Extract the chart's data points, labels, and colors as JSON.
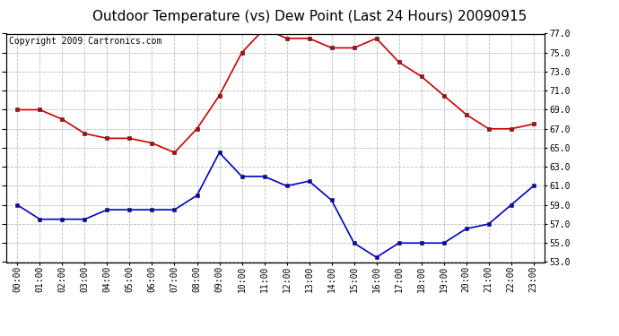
{
  "title": "Outdoor Temperature (vs) Dew Point (Last 24 Hours) 20090915",
  "copyright": "Copyright 2009 Cartronics.com",
  "hours": [
    "00:00",
    "01:00",
    "02:00",
    "03:00",
    "04:00",
    "05:00",
    "06:00",
    "07:00",
    "08:00",
    "09:00",
    "10:00",
    "11:00",
    "12:00",
    "13:00",
    "14:00",
    "15:00",
    "16:00",
    "17:00",
    "18:00",
    "19:00",
    "20:00",
    "21:00",
    "22:00",
    "23:00"
  ],
  "temp": [
    69.0,
    69.0,
    68.0,
    66.5,
    66.0,
    66.0,
    65.5,
    64.5,
    67.0,
    70.5,
    75.0,
    77.5,
    76.5,
    76.5,
    75.5,
    75.5,
    76.5,
    74.0,
    72.5,
    70.5,
    68.5,
    67.0,
    67.0,
    67.5
  ],
  "dewpoint": [
    59.0,
    57.5,
    57.5,
    57.5,
    58.5,
    58.5,
    58.5,
    58.5,
    60.0,
    64.5,
    62.0,
    62.0,
    61.0,
    61.5,
    59.5,
    55.0,
    53.5,
    55.0,
    55.0,
    55.0,
    56.5,
    57.0,
    59.0,
    61.0
  ],
  "temp_color": "#cc0000",
  "dew_color": "#0000cc",
  "background_color": "#ffffff",
  "plot_bg_color": "#ffffff",
  "grid_color": "#bbbbbb",
  "ylim": [
    53.0,
    77.0
  ],
  "yticks": [
    53.0,
    55.0,
    57.0,
    59.0,
    61.0,
    63.0,
    65.0,
    67.0,
    69.0,
    71.0,
    73.0,
    75.0,
    77.0
  ],
  "title_fontsize": 11,
  "copyright_fontsize": 7,
  "tick_fontsize": 7,
  "marker": "s",
  "marker_size": 3,
  "linewidth": 1.2
}
